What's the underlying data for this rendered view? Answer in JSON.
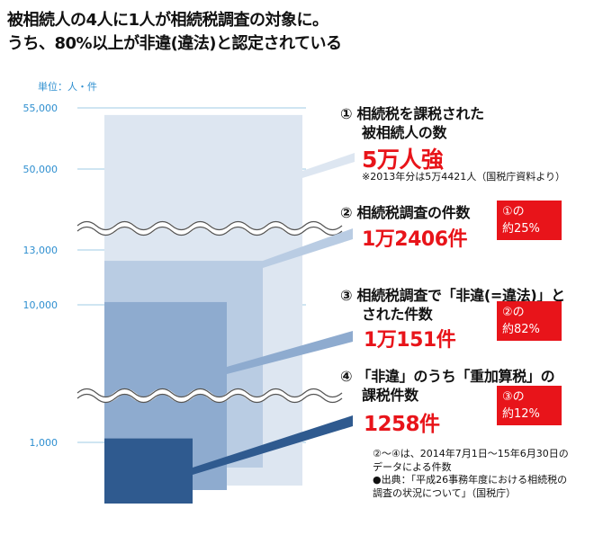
{
  "title": {
    "line1": "被相続人の4人に1人が相続税調査の対象に。",
    "line2": "うち、80%以上が非違(違法)と認定されている"
  },
  "unit_label": "単位：人・件",
  "colors": {
    "grid": "#9fcbe6",
    "tick": "#2e8fd0",
    "accent_red": "#e8141a",
    "bar1": "#dde6f1",
    "bar2": "#b9cce3",
    "bar3": "#8eabcf",
    "bar4": "#2f5a8f"
  },
  "chart_data": {
    "type": "bar",
    "y_ticks": [
      "55,000",
      "50,000",
      "13,000",
      "10,000",
      "1,000"
    ],
    "y_scale": "broken",
    "grid": true,
    "series": [
      {
        "value": 54421
      },
      {
        "value": 12406
      },
      {
        "value": 10151
      },
      {
        "value": 1258
      }
    ]
  },
  "annotations": [
    {
      "num": "①",
      "heading": [
        "相続税を課税された",
        "被相続人の数"
      ],
      "value": "5万人強",
      "note": "※2013年分は5万4421人（国税庁資料より）"
    },
    {
      "num": "②",
      "heading": [
        "相続税調査の件数"
      ],
      "value": "1万2406件",
      "badge": {
        "line1": "①の",
        "line2": "約25%"
      }
    },
    {
      "num": "③",
      "heading": [
        "相続税調査で「非違(=違法)」と",
        "された件数"
      ],
      "value": "1万151件",
      "badge": {
        "line1": "②の",
        "line2": "約82%"
      }
    },
    {
      "num": "④",
      "heading": [
        "「非違」のうち「重加算税」の",
        "課税件数"
      ],
      "value": "1258件",
      "badge": {
        "line1": "③の",
        "line2": "約12%"
      }
    }
  ],
  "footnote": [
    "②～④は、2014年7月1日～15年6月30日の",
    "データによる件数",
    "●出典：「平成26事務年度における相続税の",
    "調査の状況について」（国税庁）"
  ]
}
